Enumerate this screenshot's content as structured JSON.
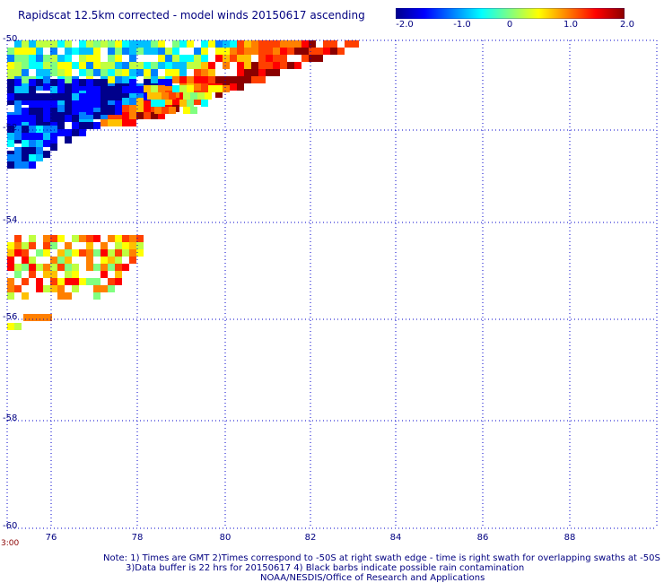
{
  "title": "Rapidscat 12.5km corrected - model winds 20150617 ascending",
  "colorbar": {
    "labels": [
      "-2.0",
      "-1.0",
      "0",
      "1.0",
      "2.0"
    ],
    "min": -2.0,
    "max": 2.0,
    "colors": [
      "#00008b",
      "#0000ff",
      "#0080ff",
      "#00ffff",
      "#80ff80",
      "#ffff00",
      "#ff8000",
      "#ff0000",
      "#8b0000"
    ]
  },
  "map": {
    "lat_labels": [
      "-50",
      "-52",
      "-54",
      "-56",
      "-58",
      "-60"
    ],
    "lon_labels": [
      "76",
      "78",
      "80",
      "82",
      "84",
      "86",
      "88"
    ],
    "lat_range": [
      -60,
      -50
    ],
    "lon_range": [
      75.0,
      89.6
    ],
    "grid": true,
    "grid_color": "#0000cd"
  },
  "time_label": "3:00",
  "notes": [
    "Note: 1) Times are GMT 2)Times correspond to -50S at right swath edge - time is right swath for overlapping swaths at -50S",
    "3)Data buffer is 22 hrs for 20150617 4) Black barbs indicate possible rain contamination",
    "NOAA/NESDIS/Office of Research and Applications"
  ]
}
